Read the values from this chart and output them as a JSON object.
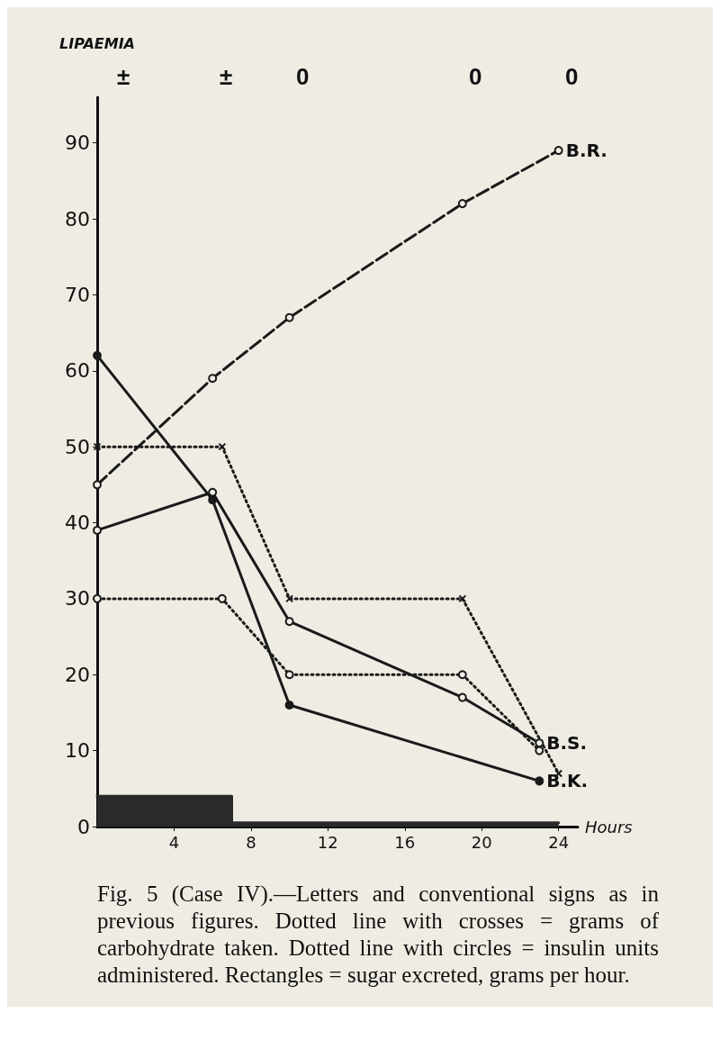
{
  "chart_data": {
    "type": "line",
    "ylabel": "LIPAEMIA",
    "xlabel": "Hours",
    "xlim": [
      0,
      25
    ],
    "xticks": [
      4,
      8,
      12,
      16,
      20,
      24
    ],
    "ylim": [
      0,
      96
    ],
    "yticks": [
      0,
      10,
      20,
      30,
      40,
      50,
      60,
      70,
      80,
      90
    ],
    "grid": false,
    "legend": false,
    "series": [
      {
        "name": "B.R.",
        "color": "#1a1a1a",
        "x": [
          0,
          6,
          10,
          19,
          24
        ],
        "values": [
          45,
          59,
          67,
          82,
          89
        ],
        "marker": "circle",
        "line_style": "dashed"
      },
      {
        "name": "B.S.",
        "color": "#1a1a1a",
        "x": [
          0,
          6,
          10,
          19,
          23
        ],
        "values": [
          39,
          44,
          27,
          17,
          11
        ],
        "marker": "circle",
        "line_style": "solid"
      },
      {
        "name": "B.K.",
        "color": "#1a1a1a",
        "x": [
          0,
          6,
          10,
          23
        ],
        "values": [
          62,
          43,
          16,
          6
        ],
        "marker": "circle",
        "line_style": "solid"
      },
      {
        "color": "#1a1a1a",
        "x": [
          0,
          6.5,
          10,
          19,
          24
        ],
        "values": [
          50,
          50,
          30,
          30,
          7
        ],
        "marker": "cross",
        "line_style": "dotted"
      },
      {
        "color": "#1a1a1a",
        "x": [
          0,
          6.5,
          10,
          19,
          23
        ],
        "values": [
          30,
          30,
          20,
          20,
          10
        ],
        "marker": "circle",
        "line_style": "dotted"
      },
      {
        "type": "area",
        "color": "#2a2a2a",
        "x": [
          0,
          7,
          7,
          24
        ],
        "values": [
          4,
          4,
          0.5,
          0.5
        ],
        "marker": "none",
        "line_style": "solid"
      }
    ],
    "annotations": [
      "±",
      "±",
      "0",
      "0",
      "0",
      "Fig. 5 (Case IV).—Letters and conventional signs as in previous figures. Dotted line with crosses = grams of carbohydrate taken. Dotted line with circles = insulin units administered. Rectangles = sugar excreted, grams per hour."
    ]
  }
}
